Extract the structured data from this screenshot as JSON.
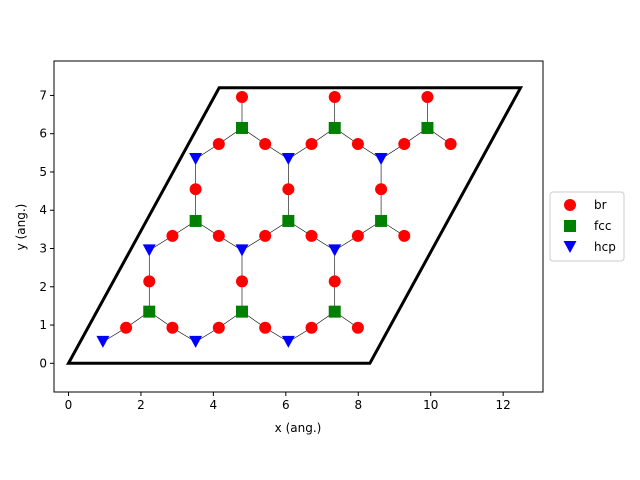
{
  "chart_data": {
    "type": "scatter",
    "title": "",
    "xlabel": "x (ang.)",
    "ylabel": "y (ang.)",
    "xlim": [
      -0.4,
      13.1
    ],
    "ylim": [
      -0.75,
      7.9
    ],
    "xticks": [
      0,
      2,
      4,
      6,
      8,
      10,
      12
    ],
    "yticks": [
      0,
      1,
      2,
      3,
      4,
      5,
      6,
      7
    ],
    "grid": false,
    "legend_position": "center-right",
    "cell": [
      [
        0,
        0
      ],
      [
        8.32,
        0
      ],
      [
        12.48,
        7.2
      ],
      [
        4.16,
        7.2
      ]
    ],
    "bonds": [
      [
        [
          0.95,
          0.56
        ],
        [
          1.59,
          0.93
        ]
      ],
      [
        [
          1.59,
          0.93
        ],
        [
          2.23,
          1.35
        ]
      ],
      [
        [
          2.23,
          1.35
        ],
        [
          2.87,
          0.93
        ]
      ],
      [
        [
          2.87,
          0.93
        ],
        [
          3.51,
          0.56
        ]
      ],
      [
        [
          3.51,
          0.56
        ],
        [
          4.15,
          0.93
        ]
      ],
      [
        [
          4.15,
          0.93
        ],
        [
          4.79,
          1.35
        ]
      ],
      [
        [
          4.79,
          1.35
        ],
        [
          5.43,
          0.93
        ]
      ],
      [
        [
          5.43,
          0.93
        ],
        [
          6.07,
          0.56
        ]
      ],
      [
        [
          6.07,
          0.56
        ],
        [
          6.71,
          0.93
        ]
      ],
      [
        [
          6.71,
          0.93
        ],
        [
          7.35,
          1.35
        ]
      ],
      [
        [
          7.35,
          1.35
        ],
        [
          7.99,
          0.93
        ]
      ],
      [
        [
          2.23,
          1.35
        ],
        [
          2.23,
          2.14
        ]
      ],
      [
        [
          2.23,
          2.14
        ],
        [
          2.23,
          2.95
        ]
      ],
      [
        [
          4.79,
          1.35
        ],
        [
          4.79,
          2.14
        ]
      ],
      [
        [
          4.79,
          2.14
        ],
        [
          4.79,
          2.95
        ]
      ],
      [
        [
          7.35,
          1.35
        ],
        [
          7.35,
          2.14
        ]
      ],
      [
        [
          7.35,
          2.14
        ],
        [
          7.35,
          2.95
        ]
      ],
      [
        [
          2.23,
          2.95
        ],
        [
          2.87,
          3.33
        ]
      ],
      [
        [
          2.87,
          3.33
        ],
        [
          3.51,
          3.72
        ]
      ],
      [
        [
          3.51,
          3.72
        ],
        [
          4.15,
          3.33
        ]
      ],
      [
        [
          4.15,
          3.33
        ],
        [
          4.79,
          2.95
        ]
      ],
      [
        [
          4.79,
          2.95
        ],
        [
          5.43,
          3.33
        ]
      ],
      [
        [
          5.43,
          3.33
        ],
        [
          6.07,
          3.72
        ]
      ],
      [
        [
          6.07,
          3.72
        ],
        [
          6.71,
          3.33
        ]
      ],
      [
        [
          6.71,
          3.33
        ],
        [
          7.35,
          2.95
        ]
      ],
      [
        [
          7.35,
          2.95
        ],
        [
          7.99,
          3.33
        ]
      ],
      [
        [
          7.99,
          3.33
        ],
        [
          8.63,
          3.72
        ]
      ],
      [
        [
          8.63,
          3.72
        ],
        [
          9.27,
          3.33
        ]
      ],
      [
        [
          3.51,
          3.72
        ],
        [
          3.51,
          4.55
        ]
      ],
      [
        [
          3.51,
          4.55
        ],
        [
          3.51,
          5.34
        ]
      ],
      [
        [
          6.07,
          3.72
        ],
        [
          6.07,
          4.55
        ]
      ],
      [
        [
          6.07,
          4.55
        ],
        [
          6.07,
          5.34
        ]
      ],
      [
        [
          8.63,
          3.72
        ],
        [
          8.63,
          4.55
        ]
      ],
      [
        [
          8.63,
          4.55
        ],
        [
          8.63,
          5.34
        ]
      ],
      [
        [
          3.51,
          5.34
        ],
        [
          4.15,
          5.73
        ]
      ],
      [
        [
          4.15,
          5.73
        ],
        [
          4.79,
          6.15
        ]
      ],
      [
        [
          4.79,
          6.15
        ],
        [
          5.43,
          5.73
        ]
      ],
      [
        [
          5.43,
          5.73
        ],
        [
          6.07,
          5.34
        ]
      ],
      [
        [
          6.07,
          5.34
        ],
        [
          6.71,
          5.73
        ]
      ],
      [
        [
          6.71,
          5.73
        ],
        [
          7.35,
          6.15
        ]
      ],
      [
        [
          7.35,
          6.15
        ],
        [
          7.99,
          5.73
        ]
      ],
      [
        [
          7.99,
          5.73
        ],
        [
          8.63,
          5.34
        ]
      ],
      [
        [
          8.63,
          5.34
        ],
        [
          9.27,
          5.73
        ]
      ],
      [
        [
          9.27,
          5.73
        ],
        [
          9.91,
          6.15
        ]
      ],
      [
        [
          9.91,
          6.15
        ],
        [
          10.55,
          5.73
        ]
      ],
      [
        [
          4.79,
          6.15
        ],
        [
          4.79,
          6.96
        ]
      ],
      [
        [
          7.35,
          6.15
        ],
        [
          7.35,
          6.96
        ]
      ],
      [
        [
          9.91,
          6.15
        ],
        [
          9.91,
          6.96
        ]
      ]
    ],
    "series": [
      {
        "name": "br",
        "marker": "circle",
        "color": "#ff0000",
        "points": [
          [
            1.59,
            0.93
          ],
          [
            2.87,
            0.93
          ],
          [
            4.15,
            0.93
          ],
          [
            5.43,
            0.93
          ],
          [
            6.71,
            0.93
          ],
          [
            7.99,
            0.93
          ],
          [
            2.23,
            2.14
          ],
          [
            4.79,
            2.14
          ],
          [
            7.35,
            2.14
          ],
          [
            2.87,
            3.33
          ],
          [
            4.15,
            3.33
          ],
          [
            5.43,
            3.33
          ],
          [
            6.71,
            3.33
          ],
          [
            7.99,
            3.33
          ],
          [
            9.27,
            3.33
          ],
          [
            3.51,
            4.55
          ],
          [
            6.07,
            4.55
          ],
          [
            8.63,
            4.55
          ],
          [
            4.15,
            5.73
          ],
          [
            5.43,
            5.73
          ],
          [
            6.71,
            5.73
          ],
          [
            7.99,
            5.73
          ],
          [
            9.27,
            5.73
          ],
          [
            10.55,
            5.73
          ],
          [
            4.79,
            6.96
          ],
          [
            7.35,
            6.96
          ],
          [
            9.91,
            6.96
          ]
        ]
      },
      {
        "name": "fcc",
        "marker": "square",
        "color": "#008000",
        "points": [
          [
            2.23,
            1.35
          ],
          [
            4.79,
            1.35
          ],
          [
            7.35,
            1.35
          ],
          [
            3.51,
            3.72
          ],
          [
            6.07,
            3.72
          ],
          [
            8.63,
            3.72
          ],
          [
            4.79,
            6.15
          ],
          [
            7.35,
            6.15
          ],
          [
            9.91,
            6.15
          ]
        ]
      },
      {
        "name": "hcp",
        "marker": "triangle-down",
        "color": "#0000ff",
        "points": [
          [
            0.95,
            0.56
          ],
          [
            3.51,
            0.56
          ],
          [
            6.07,
            0.56
          ],
          [
            2.23,
            2.95
          ],
          [
            4.79,
            2.95
          ],
          [
            7.35,
            2.95
          ],
          [
            3.51,
            5.34
          ],
          [
            6.07,
            5.34
          ],
          [
            8.63,
            5.34
          ]
        ]
      }
    ]
  }
}
